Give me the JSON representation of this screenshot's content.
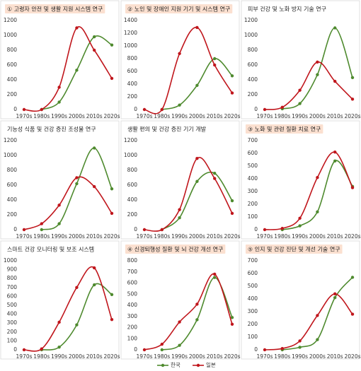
{
  "chart_data": [
    {
      "type": "line",
      "title": "① 고령자 안전 및 생활 지원 시스템 연구",
      "highlight": true,
      "categories": [
        "1970s",
        "1980s",
        "1990s",
        "2000s",
        "2010s",
        "2020s"
      ],
      "series": [
        {
          "name": "한국",
          "color": "#4e8a2e",
          "values": [
            null,
            0,
            100,
            530,
            980,
            870
          ]
        },
        {
          "name": "일본",
          "color": "#c0161c",
          "values": [
            0,
            0,
            300,
            1100,
            800,
            420
          ]
        }
      ],
      "ylim": [
        0,
        1200
      ],
      "yticks": [
        0,
        200,
        400,
        600,
        800,
        1000,
        1200
      ]
    },
    {
      "type": "line",
      "title": "② 노인 및 장애인 지원 기기 및 시스템 연구",
      "highlight": true,
      "categories": [
        "1970s",
        "1980s",
        "1990s",
        "2000s",
        "2010s",
        "2020s"
      ],
      "series": [
        {
          "name": "한국",
          "color": "#4e8a2e",
          "values": [
            null,
            0,
            70,
            380,
            800,
            530
          ]
        },
        {
          "name": "일본",
          "color": "#c0161c",
          "values": [
            0,
            0,
            880,
            1290,
            700,
            260
          ]
        }
      ],
      "ylim": [
        0,
        1400
      ],
      "yticks": [
        0,
        200,
        400,
        600,
        800,
        1000,
        1200,
        1400
      ]
    },
    {
      "type": "line",
      "title": "피부 건강 및 노화 방지 기술 연구",
      "highlight": false,
      "categories": [
        "1970s",
        "1980s",
        "1990s",
        "2000s",
        "2010s",
        "2020s"
      ],
      "series": [
        {
          "name": "한국",
          "color": "#4e8a2e",
          "values": [
            null,
            10,
            80,
            470,
            1100,
            430
          ]
        },
        {
          "name": "일본",
          "color": "#c0161c",
          "values": [
            0,
            30,
            260,
            640,
            380,
            140
          ]
        }
      ],
      "ylim": [
        0,
        1200
      ],
      "yticks": [
        0,
        200,
        400,
        600,
        800,
        1000,
        1200
      ]
    },
    {
      "type": "line",
      "title": "기능성 식품 및 건강 증진 조성물 연구",
      "highlight": false,
      "categories": [
        "1970s",
        "1980s",
        "1990s",
        "2000s",
        "2010s",
        "2020s"
      ],
      "series": [
        {
          "name": "한국",
          "color": "#4e8a2e",
          "values": [
            null,
            0,
            80,
            620,
            1100,
            550
          ]
        },
        {
          "name": "일본",
          "color": "#c0161c",
          "values": [
            0,
            80,
            330,
            700,
            580,
            220
          ]
        }
      ],
      "ylim": [
        0,
        1200
      ],
      "yticks": [
        0,
        200,
        400,
        600,
        800,
        1000,
        1200
      ]
    },
    {
      "type": "line",
      "title": "생활 편의 및 건강 증진 기기 개발",
      "highlight": false,
      "categories": [
        "1970s",
        "1980s",
        "1990s",
        "2000s",
        "2010s",
        "2020s"
      ],
      "series": [
        {
          "name": "한국",
          "color": "#4e8a2e",
          "values": [
            null,
            0,
            160,
            650,
            760,
            390
          ]
        },
        {
          "name": "일본",
          "color": "#c0161c",
          "values": [
            0,
            0,
            270,
            960,
            690,
            220
          ]
        }
      ],
      "ylim": [
        0,
        1200
      ],
      "yticks": [
        0,
        200,
        400,
        600,
        800,
        1000,
        1200
      ]
    },
    {
      "type": "line",
      "title": "③ 노화 및 관련 질환 치료 연구",
      "highlight": true,
      "categories": [
        "1970s",
        "1980s",
        "1990s",
        "2000s",
        "2010s",
        "2020s"
      ],
      "series": [
        {
          "name": "한국",
          "color": "#4e8a2e",
          "values": [
            null,
            0,
            30,
            140,
            540,
            340
          ]
        },
        {
          "name": "일본",
          "color": "#c0161c",
          "values": [
            0,
            10,
            90,
            410,
            610,
            330
          ]
        }
      ],
      "ylim": [
        0,
        700
      ],
      "yticks": [
        0,
        100,
        200,
        300,
        400,
        500,
        600,
        700
      ]
    },
    {
      "type": "line",
      "title": "스마트 건강 모니터링 및 보조 시스템",
      "highlight": false,
      "categories": [
        "1970s",
        "1980s",
        "1990s",
        "2000s",
        "2010s",
        "2020s"
      ],
      "series": [
        {
          "name": "한국",
          "color": "#4e8a2e",
          "values": [
            null,
            0,
            30,
            280,
            730,
            620
          ]
        },
        {
          "name": "일본",
          "color": "#c0161c",
          "values": [
            0,
            10,
            310,
            700,
            920,
            340
          ]
        }
      ],
      "ylim": [
        0,
        1000
      ],
      "yticks": [
        0,
        100,
        200,
        300,
        400,
        500,
        600,
        700,
        800,
        900,
        1000
      ]
    },
    {
      "type": "line",
      "title": "④ 신경퇴행성 질환 및 뇌 건강 개선 연구",
      "highlight": true,
      "categories": [
        "1970s",
        "1980s",
        "1990s",
        "2000s",
        "2010s",
        "2020s"
      ],
      "series": [
        {
          "name": "한국",
          "color": "#4e8a2e",
          "values": [
            null,
            0,
            40,
            270,
            650,
            290
          ]
        },
        {
          "name": "일본",
          "color": "#c0161c",
          "values": [
            0,
            50,
            250,
            410,
            680,
            230
          ]
        }
      ],
      "ylim": [
        0,
        800
      ],
      "yticks": [
        0,
        100,
        200,
        300,
        400,
        500,
        600,
        700,
        800
      ]
    },
    {
      "type": "line",
      "title": "⑤ 인지 및 건강 진단 및 개선 기술 연구",
      "highlight": true,
      "categories": [
        "1970s",
        "1980s",
        "1990s",
        "2000s",
        "2010s",
        "2020s"
      ],
      "series": [
        {
          "name": "한국",
          "color": "#4e8a2e",
          "values": [
            null,
            0,
            20,
            80,
            410,
            570
          ]
        },
        {
          "name": "일본",
          "color": "#c0161c",
          "values": [
            0,
            10,
            70,
            270,
            440,
            280
          ]
        }
      ],
      "ylim": [
        0,
        700
      ],
      "yticks": [
        0,
        100,
        200,
        300,
        400,
        500,
        600,
        700
      ]
    }
  ]
}
